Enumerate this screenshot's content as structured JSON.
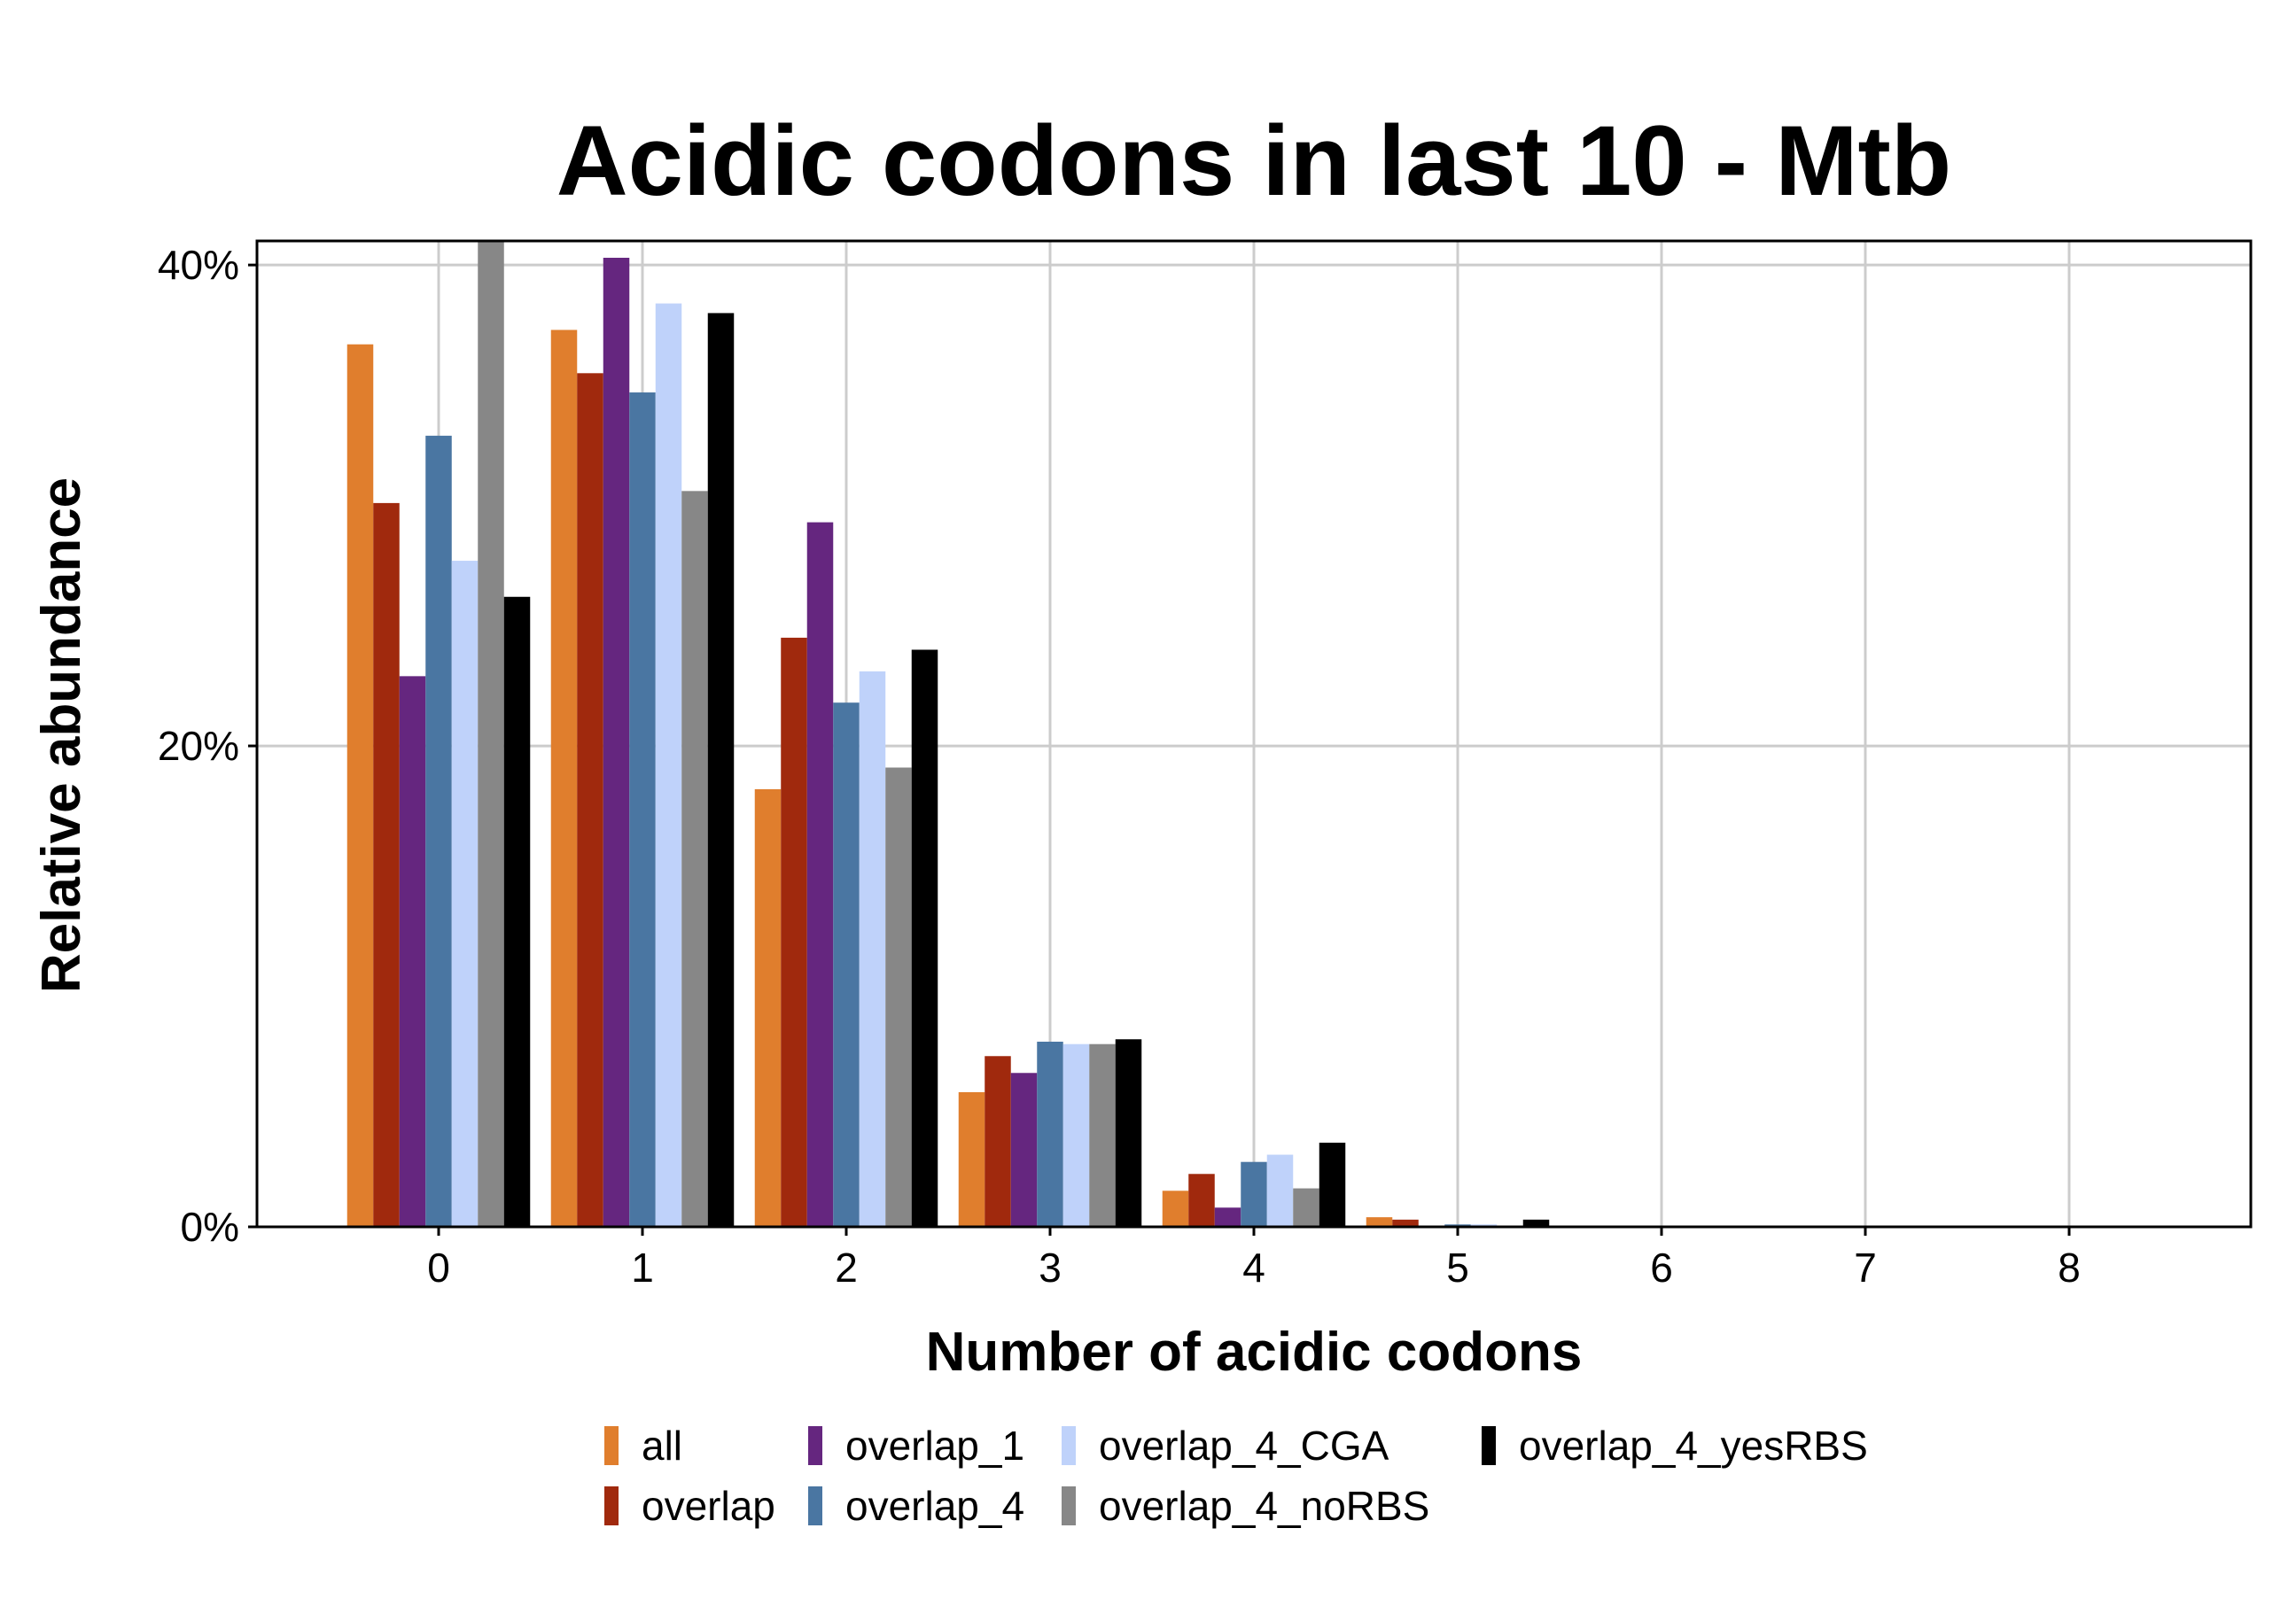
{
  "chart_data": {
    "type": "bar",
    "title": "Acidic codons in last 10 - Mtb",
    "xlabel": "Number of acidic codons",
    "ylabel": "Relative abundance",
    "categories": [
      "0",
      "1",
      "2",
      "3",
      "4",
      "5",
      "6",
      "7",
      "8"
    ],
    "ylim": [
      0,
      41
    ],
    "yticks": [
      0,
      20,
      40
    ],
    "ytick_labels": [
      "0%",
      "20%",
      "40%"
    ],
    "grid": true,
    "legend_position": "bottom",
    "series": [
      {
        "name": "all",
        "color": "#E07E2D",
        "values": [
          36.7,
          37.3,
          18.2,
          5.6,
          1.5,
          0.4,
          0,
          0,
          0
        ]
      },
      {
        "name": "overlap",
        "color": "#A0290D",
        "values": [
          30.1,
          35.5,
          24.5,
          7.1,
          2.2,
          0.3,
          0,
          0,
          0
        ]
      },
      {
        "name": "overlap_1",
        "color": "#65267F",
        "values": [
          22.9,
          40.3,
          29.3,
          6.4,
          0.8,
          0,
          0,
          0,
          0
        ]
      },
      {
        "name": "overlap_4",
        "color": "#4A76A2",
        "values": [
          32.9,
          34.7,
          21.8,
          7.7,
          2.7,
          0.1,
          0,
          0,
          0
        ]
      },
      {
        "name": "overlap_4_CGA",
        "color": "#BFD2FA",
        "values": [
          27.7,
          38.4,
          23.1,
          7.6,
          3.0,
          0.1,
          0,
          0,
          0
        ]
      },
      {
        "name": "overlap_4_noRBS",
        "color": "#878787",
        "values": [
          41.0,
          30.6,
          19.1,
          7.6,
          1.6,
          0,
          0,
          0,
          0
        ]
      },
      {
        "name": "overlap_4_yesRBS",
        "color": "#000000",
        "values": [
          26.2,
          38.0,
          24.0,
          7.8,
          3.5,
          0.3,
          0,
          0,
          0
        ]
      }
    ]
  }
}
